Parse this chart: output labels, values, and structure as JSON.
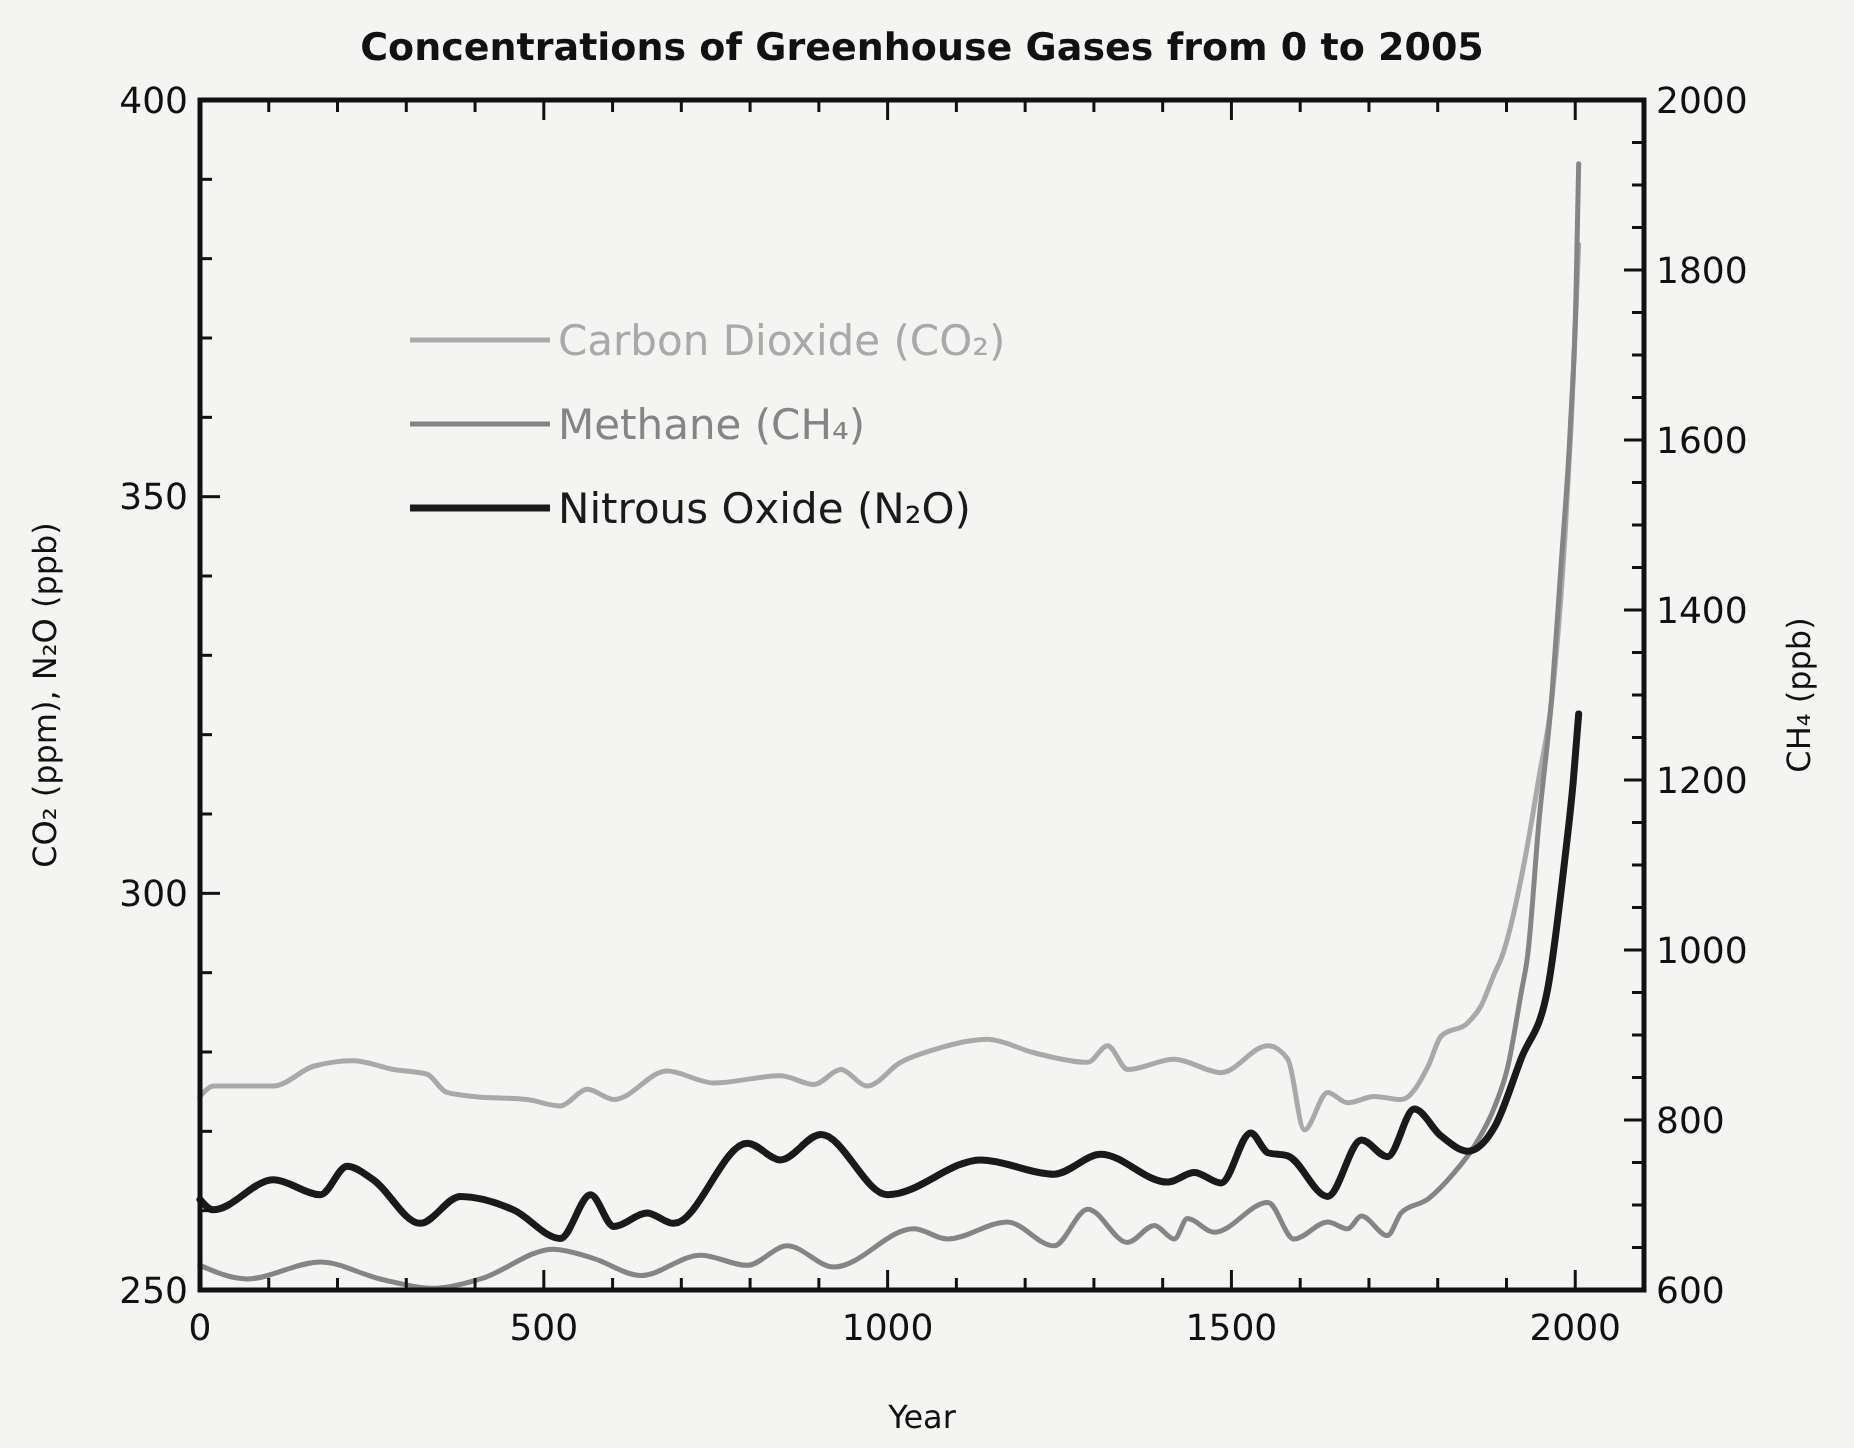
{
  "chart_data": {
    "type": "line",
    "title": "Concentrations of Greenhouse Gases from 0 to 2005",
    "xlabel": "Year",
    "ylabel": "CO₂ (ppm), N₂O (ppb)",
    "y2label": "CH₄ (ppb)",
    "xlim": [
      0,
      2100
    ],
    "xticks": [
      0,
      {
        "value": 100,
        "label": null
      },
      {
        "value": 200,
        "label": null
      },
      {
        "value": 300,
        "label": null
      },
      {
        "value": 400,
        "label": null
      },
      500,
      {
        "value": 600,
        "label": null
      },
      {
        "value": 700,
        "label": null
      },
      {
        "value": 800,
        "label": null
      },
      {
        "value": 900,
        "label": null
      },
      1000,
      {
        "value": 1100,
        "label": null
      },
      {
        "value": 1200,
        "label": null
      },
      {
        "value": 1300,
        "label": null
      },
      {
        "value": 1400,
        "label": null
      },
      1500,
      {
        "value": 1600,
        "label": null
      },
      {
        "value": 1700,
        "label": null
      },
      {
        "value": 1800,
        "label": null
      },
      {
        "value": 1900,
        "label": null
      },
      2000
    ],
    "ylim": [
      250,
      400
    ],
    "yticks": [
      250,
      {
        "value": 260,
        "label": null
      },
      {
        "value": 270,
        "label": null
      },
      {
        "value": 280,
        "label": null
      },
      {
        "value": 290,
        "label": null
      },
      300,
      {
        "value": 310,
        "label": null
      },
      {
        "value": 320,
        "label": null
      },
      {
        "value": 330,
        "label": null
      },
      {
        "value": 340,
        "label": null
      },
      350,
      {
        "value": 360,
        "label": null
      },
      {
        "value": 370,
        "label": null
      },
      {
        "value": 380,
        "label": null
      },
      {
        "value": 390,
        "label": null
      },
      400
    ],
    "y2lim": [
      600,
      2000
    ],
    "y2ticks": [
      600,
      {
        "value": 650,
        "label": null
      },
      {
        "value": 700,
        "label": null
      },
      {
        "value": 750,
        "label": null
      },
      800,
      {
        "value": 850,
        "label": null
      },
      {
        "value": 900,
        "label": null
      },
      {
        "value": 950,
        "label": null
      },
      1000,
      {
        "value": 1050,
        "label": null
      },
      {
        "value": 1100,
        "label": null
      },
      {
        "value": 1150,
        "label": null
      },
      1200,
      {
        "value": 1250,
        "label": null
      },
      {
        "value": 1300,
        "label": null
      },
      {
        "value": 1350,
        "label": null
      },
      1400,
      {
        "value": 1450,
        "label": null
      },
      {
        "value": 1500,
        "label": null
      },
      {
        "value": 1550,
        "label": null
      },
      1600,
      {
        "value": 1650,
        "label": null
      },
      {
        "value": 1700,
        "label": null
      },
      {
        "value": 1750,
        "label": null
      },
      1800,
      {
        "value": 1850,
        "label": null
      },
      {
        "value": 1900,
        "label": null
      },
      {
        "value": 1950,
        "label": null
      },
      2000
    ],
    "grid": false,
    "legend": "top left",
    "marker": "none",
    "line_style": "solid",
    "series": [
      {
        "name": "Carbon Dioxide (CO₂)",
        "color": "#a9a9a9",
        "x": [
          0,
          20,
          107,
          165,
          223,
          282,
          330,
          359,
          398,
          476,
          524,
          563,
          602,
          679,
          747,
          844,
          893,
          932,
          970,
          1019,
          1068,
          1145,
          1213,
          1291,
          1320,
          1349,
          1417,
          1485,
          1553,
          1582,
          1606,
          1640,
          1669,
          1708,
          1747,
          1786,
          1805,
          1844,
          1863,
          1883,
          1892,
          1927,
          1947,
          1966,
          1985,
          1994,
          2005
        ],
        "values": [
          274.4,
          275.7,
          275.7,
          278.2,
          278.9,
          277.8,
          277.2,
          274.9,
          274.4,
          274.0,
          273.2,
          275.3,
          274.0,
          277.6,
          276.1,
          277.0,
          275.9,
          277.8,
          275.7,
          278.7,
          280.3,
          281.6,
          279.9,
          278.7,
          280.8,
          277.8,
          279.1,
          277.4,
          280.8,
          279.1,
          270.2,
          274.9,
          273.6,
          274.4,
          274.0,
          278.2,
          282.0,
          283.7,
          285.8,
          290.0,
          291.7,
          304.4,
          314.5,
          324.6,
          344.9,
          359.0,
          381.8
        ]
      },
      {
        "name": "Methane (CH₄)",
        "color": "#858585",
        "axis": "y2",
        "x": [
          0,
          68,
          175,
          262,
          340,
          408,
          514,
          573,
          641,
          728,
          796,
          854,
          922,
          1038,
          1087,
          1174,
          1242,
          1291,
          1349,
          1388,
          1417,
          1436,
          1475,
          1553,
          1591,
          1640,
          1669,
          1689,
          1727,
          1747,
          1786,
          1824,
          1853,
          1883,
          1902,
          1921,
          1931,
          1947,
          1966,
          1979,
          1993,
          2001,
          2005
        ],
        "values": [
          629,
          613,
          633,
          613,
          602,
          613,
          648,
          637,
          617,
          641,
          629,
          652,
          627,
          672,
          660,
          680,
          652,
          695,
          656,
          676,
          660,
          684,
          668,
          703,
          660,
          680,
          672,
          687,
          664,
          691,
          707,
          738,
          769,
          816,
          863,
          948,
          995,
          1149,
          1299,
          1448,
          1617,
          1766,
          1925
        ]
      },
      {
        "name": "Nitrous Oxide (N₂O)",
        "color": "#1a1a1a",
        "x": [
          0,
          19,
          107,
          175,
          214,
          252,
          320,
          379,
          456,
          524,
          568,
          602,
          650,
          689,
          796,
          844,
          903,
          1000,
          1136,
          1242,
          1310,
          1407,
          1446,
          1485,
          1528,
          1553,
          1582,
          1640,
          1689,
          1727,
          1766,
          1805,
          1844,
          1883,
          1921,
          1960,
          1985,
          1997,
          2005
        ],
        "values": [
          261.4,
          260.1,
          263.9,
          262.0,
          265.6,
          263.9,
          258.4,
          261.8,
          260.1,
          256.5,
          262.0,
          258.0,
          259.7,
          258.4,
          268.5,
          266.4,
          269.6,
          262.0,
          266.4,
          264.6,
          267.1,
          263.6,
          264.8,
          263.5,
          269.8,
          267.3,
          266.9,
          261.8,
          268.9,
          266.8,
          272.8,
          269.4,
          267.5,
          270.6,
          279.1,
          288.0,
          304.4,
          314.0,
          322.6
        ]
      }
    ]
  }
}
